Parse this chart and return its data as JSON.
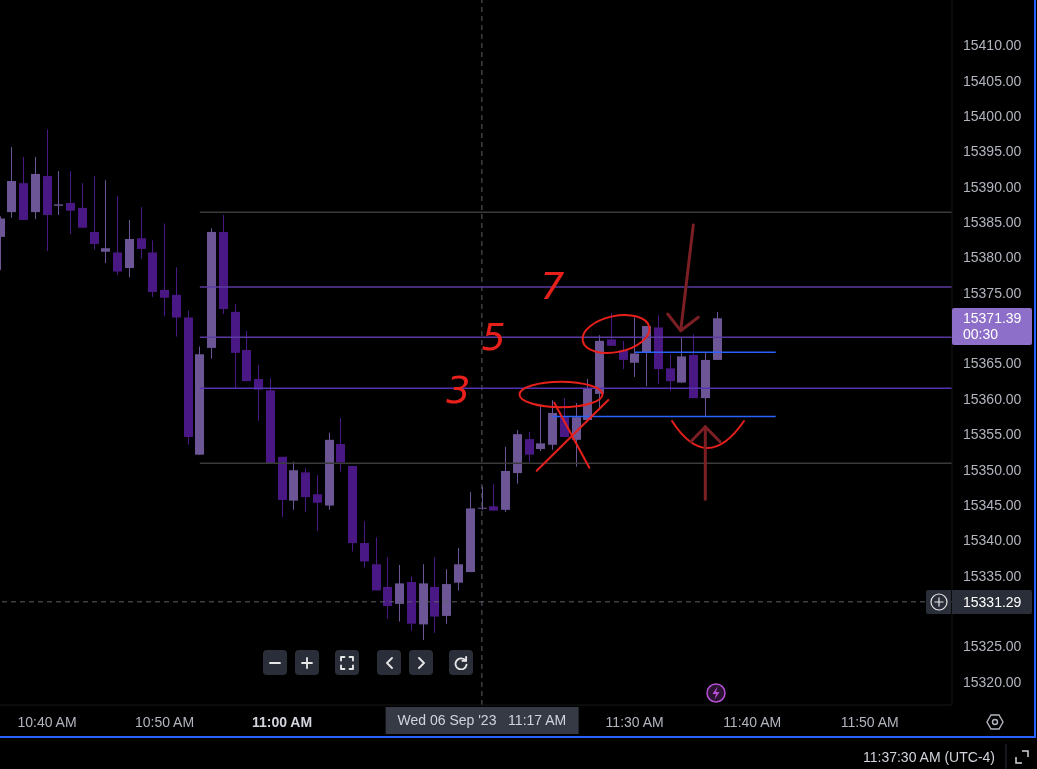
{
  "chart_data": {
    "type": "candlestick",
    "x": [
      "2023-09-06T10:36",
      "2023-09-06T10:37",
      "2023-09-06T10:38",
      "2023-09-06T10:39",
      "2023-09-06T10:40",
      "2023-09-06T10:41",
      "2023-09-06T10:42",
      "2023-09-06T10:43",
      "2023-09-06T10:44",
      "2023-09-06T10:45",
      "2023-09-06T10:46",
      "2023-09-06T10:47",
      "2023-09-06T10:48",
      "2023-09-06T10:49",
      "2023-09-06T10:50",
      "2023-09-06T10:51",
      "2023-09-06T10:52",
      "2023-09-06T10:53",
      "2023-09-06T10:54",
      "2023-09-06T10:55",
      "2023-09-06T10:56",
      "2023-09-06T10:57",
      "2023-09-06T10:58",
      "2023-09-06T10:59",
      "2023-09-06T11:00",
      "2023-09-06T11:01",
      "2023-09-06T11:02",
      "2023-09-06T11:03",
      "2023-09-06T11:04",
      "2023-09-06T11:05",
      "2023-09-06T11:06",
      "2023-09-06T11:07",
      "2023-09-06T11:08",
      "2023-09-06T11:09",
      "2023-09-06T11:10",
      "2023-09-06T11:11",
      "2023-09-06T11:12",
      "2023-09-06T11:13",
      "2023-09-06T11:14",
      "2023-09-06T11:15",
      "2023-09-06T11:16",
      "2023-09-06T11:17",
      "2023-09-06T11:18",
      "2023-09-06T11:19",
      "2023-09-06T11:20",
      "2023-09-06T11:21",
      "2023-09-06T11:22",
      "2023-09-06T11:23",
      "2023-09-06T11:24",
      "2023-09-06T11:25",
      "2023-09-06T11:26",
      "2023-09-06T11:27",
      "2023-09-06T11:28",
      "2023-09-06T11:29",
      "2023-09-06T11:30",
      "2023-09-06T11:31",
      "2023-09-06T11:32",
      "2023-09-06T11:33",
      "2023-09-06T11:34",
      "2023-09-06T11:35",
      "2023-09-06T11:36",
      "2023-09-06T11:37"
    ],
    "ohlc": [
      [
        15382.9,
        15385.8,
        15378.2,
        15385.5
      ],
      [
        15386.4,
        15395.6,
        15385.6,
        15390.8
      ],
      [
        15390.5,
        15394.2,
        15385.3,
        15385.3
      ],
      [
        15386.4,
        15394.2,
        15385.4,
        15391.8
      ],
      [
        15391.5,
        15398.1,
        15380.9,
        15386.0
      ],
      [
        15387.3,
        15392.2,
        15386.0,
        15387.5
      ],
      [
        15387.7,
        15392.2,
        15383.3,
        15386.6
      ],
      [
        15387.0,
        15390.5,
        15384.2,
        15384.2
      ],
      [
        15383.6,
        15391.5,
        15381.1,
        15381.9
      ],
      [
        15380.8,
        15390.9,
        15379.2,
        15381.3
      ],
      [
        15380.7,
        15388.7,
        15377.5,
        15378.0
      ],
      [
        15378.5,
        15385.3,
        15377.2,
        15382.6
      ],
      [
        15382.7,
        15387.1,
        15379.8,
        15381.2
      ],
      [
        15380.7,
        15382.4,
        15374.4,
        15375.1
      ],
      [
        15375.4,
        15384.8,
        15371.7,
        15374.3
      ],
      [
        15374.7,
        15378.6,
        15368.8,
        15371.5
      ],
      [
        15371.5,
        15372.5,
        15353.5,
        15354.6
      ],
      [
        15352.1,
        15367.4,
        15352.1,
        15366.3
      ],
      [
        15367.2,
        15384.1,
        15365.7,
        15383.6
      ],
      [
        15383.6,
        15386.0,
        15372.0,
        15372.7
      ],
      [
        15372.3,
        15373.4,
        15361.4,
        15366.5
      ],
      [
        15366.9,
        15369.6,
        15362.5,
        15362.5
      ],
      [
        15362.8,
        15364.8,
        15356.9,
        15361.3
      ],
      [
        15361.2,
        15362.9,
        15350.9,
        15350.9
      ],
      [
        15351.8,
        15351.8,
        15343.3,
        15345.7
      ],
      [
        15345.6,
        15351.1,
        15344.3,
        15349.9
      ],
      [
        15349.6,
        15350.2,
        15344.0,
        15346.1
      ],
      [
        15346.5,
        15349.2,
        15341.3,
        15345.3
      ],
      [
        15344.9,
        15355.2,
        15344.3,
        15354.2
      ],
      [
        15353.6,
        15357.3,
        15349.7,
        15351.0
      ],
      [
        15350.5,
        15350.5,
        15338.4,
        15339.6
      ],
      [
        15339.6,
        15342.7,
        15336.1,
        15337.0
      ],
      [
        15336.6,
        15340.4,
        15332.9,
        15332.9
      ],
      [
        15333.4,
        15337.6,
        15328.9,
        15330.7
      ],
      [
        15331.0,
        15336.5,
        15328.5,
        15333.9
      ],
      [
        15334.1,
        15334.9,
        15327.2,
        15328.2
      ],
      [
        15328.1,
        15336.6,
        15325.9,
        15333.9
      ],
      [
        15333.4,
        15337.6,
        15326.9,
        15329.2
      ],
      [
        15329.3,
        15335.9,
        15328.2,
        15333.8
      ],
      [
        15334.0,
        15338.9,
        15332.9,
        15336.6
      ],
      [
        15335.5,
        15346.8,
        15335.5,
        15344.5
      ],
      [
        15344.5,
        15347.6,
        15344.3,
        15344.6
      ],
      [
        15344.8,
        15347.9,
        15344.2,
        15344.2
      ],
      [
        15344.3,
        15353.2,
        15344.0,
        15349.8
      ],
      [
        15349.5,
        15355.6,
        15348.0,
        15355.0
      ],
      [
        15354.3,
        15355.3,
        15351.1,
        15352.1
      ],
      [
        15352.9,
        15359.2,
        15352.6,
        15353.7
      ],
      [
        15353.5,
        15359.8,
        15352.8,
        15358.0
      ],
      [
        15357.4,
        15360.1,
        15354.6,
        15354.6
      ],
      [
        15354.2,
        15359.4,
        15350.4,
        15357.4
      ],
      [
        15357.0,
        15362.8,
        15357.0,
        15361.4
      ],
      [
        15360.7,
        15369.0,
        15358.4,
        15368.2
      ],
      [
        15368.4,
        15372.1,
        15367.5,
        15367.5
      ],
      [
        15366.9,
        15368.2,
        15364.2,
        15365.5
      ],
      [
        15365.1,
        15371.5,
        15363.1,
        15366.4
      ],
      [
        15366.6,
        15370.3,
        15361.8,
        15370.3
      ],
      [
        15370.1,
        15371.8,
        15362.1,
        15364.2
      ],
      [
        15364.3,
        15366.3,
        15361.1,
        15362.5
      ],
      [
        15362.3,
        15368.7,
        15362.3,
        15366.0
      ],
      [
        15366.2,
        15369.1,
        15360.1,
        15360.1
      ],
      [
        15360.1,
        15366.5,
        15357.5,
        15365.5
      ],
      [
        15365.5,
        15372.3,
        15365.5,
        15371.39
      ]
    ],
    "colors": [
      "#6c5696",
      "#6c5696",
      "#4a1884",
      "#6c5696",
      "#4a1884",
      "#6c5696",
      "#4a1884",
      "#4a1884",
      "#4a1884",
      "#6c5696",
      "#4a1884",
      "#6c5696",
      "#4a1884",
      "#4a1884",
      "#4a1884",
      "#4a1884",
      "#4a1884",
      "#6c5696",
      "#6c5696",
      "#4a1884",
      "#4a1884",
      "#4a1884",
      "#4a1884",
      "#4a1884",
      "#4a1884",
      "#6c5696",
      "#4a1884",
      "#4a1884",
      "#6c5696",
      "#4a1884",
      "#4a1884",
      "#4a1884",
      "#4a1884",
      "#4a1884",
      "#6c5696",
      "#4a1884",
      "#6c5696",
      "#4a1884",
      "#6c5696",
      "#6c5696",
      "#6c5696",
      "#6c5696",
      "#4a1884",
      "#6c5696",
      "#6c5696",
      "#4a1884",
      "#6c5696",
      "#6c5696",
      "#4a1884",
      "#6c5696",
      "#6c5696",
      "#6c5696",
      "#4a1884",
      "#4a1884",
      "#6c5696",
      "#6c5696",
      "#4a1884",
      "#4a1884",
      "#6c5696",
      "#4a1884",
      "#6c5696",
      "#6c5696"
    ],
    "series": [
      {
        "type": "line",
        "color": "#3b3b3b",
        "x": [
          "2023-09-06T10:53",
          "2023-09-06T11:57"
        ],
        "values": [
          15386.4,
          15386.4
        ]
      },
      {
        "type": "line",
        "color": "#5a3aa0",
        "x": [
          "2023-09-06T10:53",
          "2023-09-06T11:57"
        ],
        "values": [
          15375.8,
          15375.8
        ]
      },
      {
        "type": "line",
        "color": "#5a3aa0",
        "x": [
          "2023-09-06T10:53",
          "2023-09-06T11:57"
        ],
        "values": [
          15368.7,
          15368.7
        ]
      },
      {
        "type": "line",
        "color": "#5533b0",
        "x": [
          "2023-09-06T10:53",
          "2023-09-06T11:57"
        ],
        "values": [
          15361.5,
          15361.5
        ]
      },
      {
        "type": "line",
        "color": "#3b3b3b",
        "x": [
          "2023-09-06T10:53",
          "2023-09-06T11:57"
        ],
        "values": [
          15350.9,
          15350.9
        ]
      },
      {
        "type": "line",
        "color": "#2962ff",
        "x": [
          "2023-09-06T11:30",
          "2023-09-06T11:42"
        ],
        "values": [
          15366.6,
          15366.6
        ]
      },
      {
        "type": "line",
        "color": "#2962ff",
        "x": [
          "2023-09-06T11:23",
          "2023-09-06T11:42"
        ],
        "values": [
          15357.5,
          15357.5
        ]
      }
    ],
    "xlim": [
      "2023-09-06T10:36",
      "2023-09-06T11:57"
    ],
    "xticks": [
      {
        "value": "2023-09-06T10:40",
        "label": "10:40 AM"
      },
      {
        "value": "2023-09-06T10:50",
        "label": "10:50 AM"
      },
      {
        "value": "2023-09-06T11:00",
        "label": "11:00 AM"
      },
      {
        "value": "2023-09-06T11:30",
        "label": "11:30 AM"
      },
      {
        "value": "2023-09-06T11:40",
        "label": "11:40 AM"
      },
      {
        "value": "2023-09-06T11:50",
        "label": "11:50 AM"
      }
    ],
    "ylim": [
      15316.7,
      15416.4
    ],
    "yticks": [
      {
        "value": 15320,
        "label": "15320.00"
      },
      {
        "value": 15325,
        "label": "15325.00"
      },
      {
        "value": 15335,
        "label": "15335.00"
      },
      {
        "value": 15340,
        "label": "15340.00"
      },
      {
        "value": 15345,
        "label": "15345.00"
      },
      {
        "value": 15350,
        "label": "15350.00"
      },
      {
        "value": 15355,
        "label": "15355.00"
      },
      {
        "value": 15360,
        "label": "15360.00"
      },
      {
        "value": 15365,
        "label": "15365.00"
      },
      {
        "value": 15375,
        "label": "15375.00"
      },
      {
        "value": 15380,
        "label": "15380.00"
      },
      {
        "value": 15385,
        "label": "15385.00"
      },
      {
        "value": 15390,
        "label": "15390.00"
      },
      {
        "value": 15395,
        "label": "15395.00"
      },
      {
        "value": 15400,
        "label": "15400.00"
      },
      {
        "value": 15405,
        "label": "15405.00"
      },
      {
        "value": 15410,
        "label": "15410.00"
      }
    ],
    "ref_lines": [
      {
        "axis": "x",
        "value": "2023-09-06T11:17",
        "label": "Wed 06 Sep '23   11:17 AM",
        "color": "#5d606b",
        "line_style": "dashed"
      },
      {
        "axis": "y",
        "value": 15331.29,
        "label": "15331.29",
        "color": "#5d606b",
        "line_style": "dashed"
      }
    ],
    "annotations": [
      {
        "text": "7",
        "x": "2023-09-06T11:23",
        "y": 15376
      },
      {
        "text": "5",
        "x": "2023-09-06T11:18",
        "y": 15368.7
      },
      {
        "text": "3",
        "x": "2023-09-06T11:15",
        "y": 15361.3
      },
      "15371.39",
      "00:30",
      "11:37:30 AM (UTC-4)"
    ]
  }
}
